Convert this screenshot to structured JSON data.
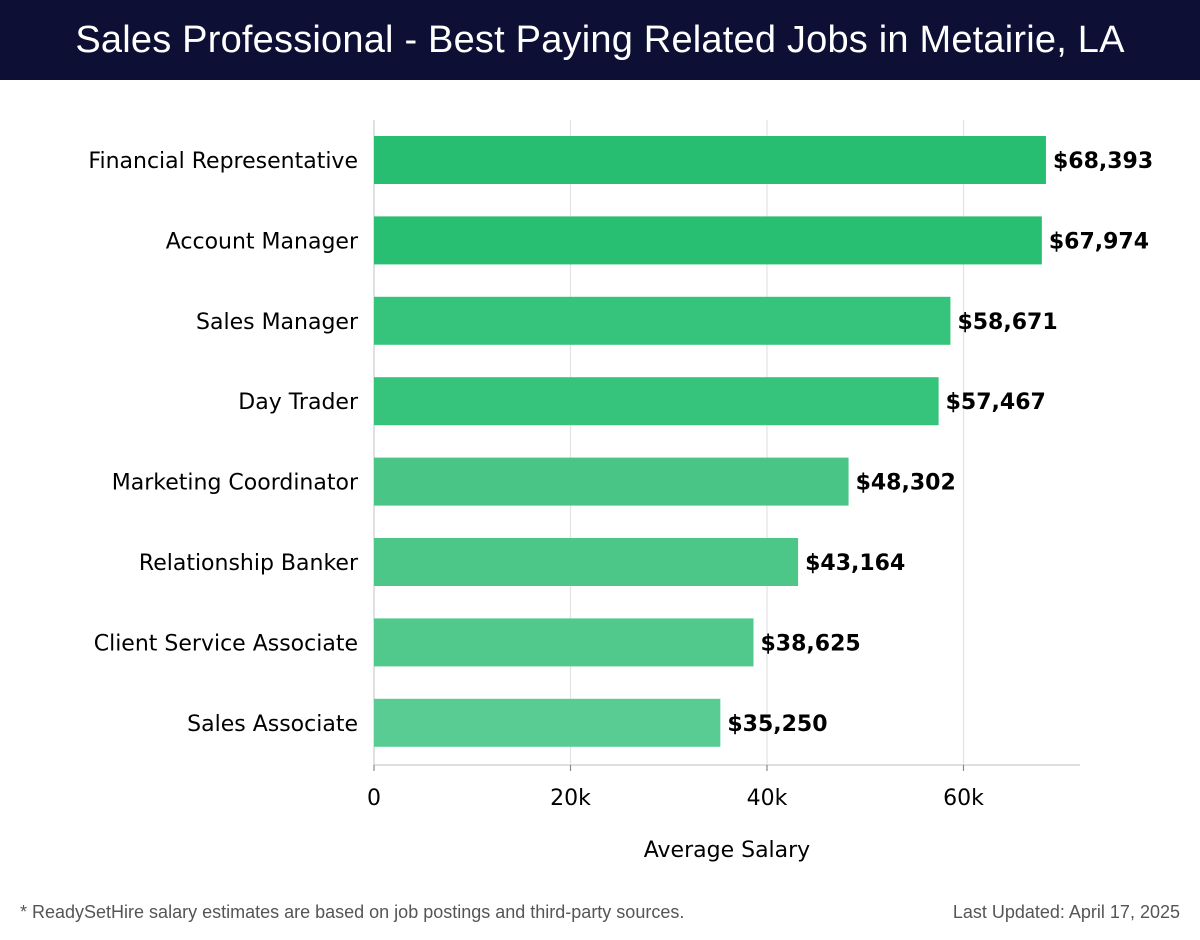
{
  "header": {
    "title": "Sales Professional - Best Paying Related Jobs in Metairie, LA"
  },
  "chart_data": {
    "type": "bar",
    "orientation": "horizontal",
    "categories": [
      "Financial Representative",
      "Account Manager",
      "Sales Manager",
      "Day Trader",
      "Marketing Coordinator",
      "Relationship Banker",
      "Client Service Associate",
      "Sales Associate"
    ],
    "values": [
      68393,
      67974,
      58671,
      57467,
      48302,
      43164,
      38625,
      35250
    ],
    "value_labels": [
      "$68,393",
      "$67,974",
      "$58,671",
      "$57,467",
      "$48,302",
      "$43,164",
      "$38,625",
      "$35,250"
    ],
    "bar_colors": [
      "#27be72",
      "#29bf73",
      "#36c37b",
      "#36c37b",
      "#49c586",
      "#4cc788",
      "#52c98c",
      "#58cc92"
    ],
    "xlabel": "Average Salary",
    "ylabel": "",
    "xlim": [
      0,
      72000
    ],
    "x_ticks": [
      0,
      20000,
      40000,
      60000
    ],
    "x_tick_labels": [
      "0",
      "20k",
      "40k",
      "60k"
    ],
    "grid": true
  },
  "footer": {
    "note": "* ReadySetHire salary estimates are based on job postings and third-party sources.",
    "updated": "Last Updated: April 17, 2025"
  }
}
